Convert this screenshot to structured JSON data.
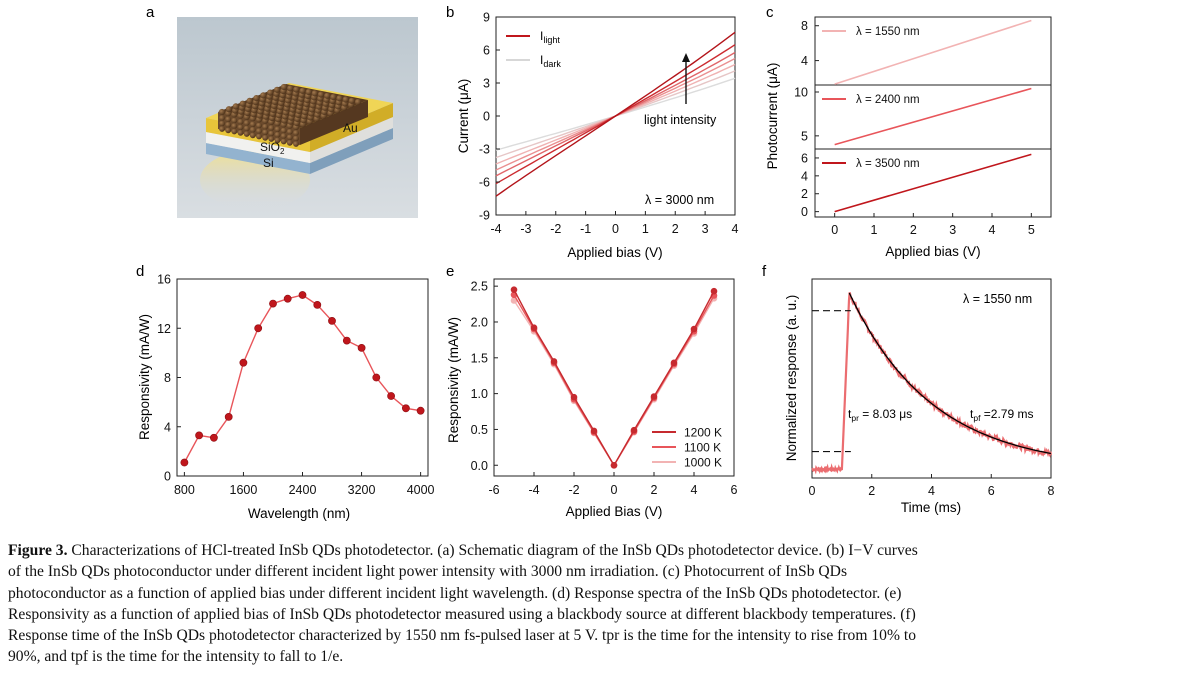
{
  "colors": {
    "dark_red": "#c0161c",
    "mid_red": "#e8555a",
    "light_red": "#f2aaa9",
    "pale": "#d7d7d7",
    "axis": "#222222",
    "fit": "#000000",
    "gold": "#e8c53a",
    "qd_brown": "#6b4a2c"
  },
  "panels": {
    "a": {
      "letter": "a",
      "label_au": "Au",
      "label_sio2_main": "SiO",
      "label_sio2_sub": "2",
      "label_si": "Si"
    },
    "b": {
      "letter": "b",
      "legend_light_main": "I",
      "legend_light_sub": "light",
      "legend_dark_main": "I",
      "legend_dark_sub": "dark",
      "annotation": "light intensity",
      "wavelength": "λ = 3000 nm"
    },
    "c": {
      "letter": "c"
    },
    "d": {
      "letter": "d"
    },
    "e": {
      "letter": "e"
    },
    "f": {
      "letter": "f",
      "wavelength": "λ = 1550 nm",
      "tpr_main": "t",
      "tpr_sub": "pr",
      "tpr_value": " = 8.03 μs",
      "tpf_main": "t",
      "tpf_sub": "pf",
      "tpf_value": " =2.79 ms"
    }
  },
  "chart_data": [
    {
      "panel": "b",
      "type": "line",
      "xlabel": "Applied bias (V)",
      "ylabel": "Current (μA)",
      "xlim": [
        -4,
        4
      ],
      "ylim": [
        -9,
        9
      ],
      "xticks": [
        "-4",
        "-3",
        "-2",
        "-1",
        "0",
        "1",
        "2",
        "3",
        "4"
      ],
      "yticks": [
        "-9",
        "-6",
        "-3",
        "0",
        "3",
        "6",
        "9"
      ],
      "series": [
        {
          "name": "I_dark 1",
          "slope": 0.82,
          "color": "#dcdcdc"
        },
        {
          "name": "I_dark 2",
          "slope": 0.98,
          "color": "#e6c6c6"
        },
        {
          "name": "I_light 1",
          "slope": 1.12,
          "color": "#f0b2b2"
        },
        {
          "name": "I_light 2",
          "slope": 1.25,
          "color": "#ea8f90"
        },
        {
          "name": "I_light 3",
          "slope": 1.38,
          "color": "#e06569"
        },
        {
          "name": "I_light 4",
          "slope": 1.55,
          "color": "#cc2b30"
        },
        {
          "name": "I_light 5",
          "slope": 1.82,
          "color": "#b3141a"
        }
      ]
    },
    {
      "panel": "c",
      "type": "line",
      "xlabel": "Applied bias (V)",
      "ylabel": "Photocurrent (μA)",
      "xlim": [
        -0.5,
        5.5
      ],
      "xticks": [
        "0",
        "1",
        "2",
        "3",
        "4",
        "5"
      ],
      "subplots": [
        {
          "legend": "λ = 1550 nm",
          "ylim": [
            1.2,
            9.0
          ],
          "yticks": [
            "4",
            "8"
          ],
          "x": [
            0,
            5
          ],
          "y": [
            1.3,
            8.6
          ],
          "color": "#f2b3b3"
        },
        {
          "legend": "λ = 2400 nm",
          "ylim": [
            3.5,
            10.8
          ],
          "yticks": [
            "5",
            "10"
          ],
          "x": [
            0,
            5
          ],
          "y": [
            4.0,
            10.4
          ],
          "color": "#e8555a"
        },
        {
          "legend": "λ = 3500 nm",
          "ylim": [
            -0.6,
            7.0
          ],
          "yticks": [
            "0",
            "2",
            "4",
            "6"
          ],
          "x": [
            0,
            5
          ],
          "y": [
            0.0,
            6.4
          ],
          "color": "#c0161c"
        }
      ]
    },
    {
      "panel": "d",
      "type": "line",
      "xlabel": "Wavelength (nm)",
      "ylabel": "Responsivity (mA/W)",
      "xlim": [
        700,
        4100
      ],
      "ylim": [
        0,
        16
      ],
      "xticks": [
        "800",
        "1600",
        "2400",
        "3200",
        "4000"
      ],
      "yticks": [
        "0",
        "4",
        "8",
        "12",
        "16"
      ],
      "x": [
        800,
        1000,
        1200,
        1400,
        1600,
        1800,
        2000,
        2200,
        2400,
        2600,
        2800,
        3000,
        3200,
        3400,
        3600,
        3800,
        4000
      ],
      "y": [
        1.1,
        3.3,
        3.1,
        4.8,
        9.2,
        12.0,
        14.0,
        14.4,
        14.7,
        13.9,
        12.6,
        11.0,
        10.4,
        8.0,
        6.5,
        5.5,
        5.3
      ]
    },
    {
      "panel": "e",
      "type": "line",
      "xlabel": "Applied Bias (V)",
      "ylabel": "Responsivity (mA/W)",
      "xlim": [
        -6,
        6
      ],
      "ylim": [
        -0.15,
        2.6
      ],
      "xticks": [
        "-6",
        "-4",
        "-2",
        "0",
        "2",
        "4",
        "6"
      ],
      "yticks": [
        "0.0",
        "0.5",
        "1.0",
        "1.5",
        "2.0",
        "2.5"
      ],
      "x": [
        -5,
        -4,
        -3,
        -2,
        -1,
        0,
        1,
        2,
        3,
        4,
        5
      ],
      "series": [
        {
          "name": "1200 K",
          "values": [
            2.45,
            1.92,
            1.45,
            0.95,
            0.48,
            0.0,
            0.49,
            0.96,
            1.43,
            1.9,
            2.43
          ],
          "color": "#c62a2f"
        },
        {
          "name": "1100 K",
          "values": [
            2.38,
            1.9,
            1.43,
            0.92,
            0.46,
            0.0,
            0.47,
            0.94,
            1.41,
            1.87,
            2.37
          ],
          "color": "#e8555a"
        },
        {
          "name": "1000 K",
          "values": [
            2.3,
            1.87,
            1.41,
            0.9,
            0.45,
            0.0,
            0.46,
            0.92,
            1.39,
            1.84,
            2.33
          ],
          "color": "#f2b3b3"
        }
      ]
    },
    {
      "panel": "f",
      "type": "line",
      "xlabel": "Time (ms)",
      "ylabel": "Normalized response (a. u.)",
      "xlim": [
        0,
        8
      ],
      "ylim": [
        -0.05,
        1.08
      ],
      "xticks": [
        "0",
        "2",
        "4",
        "6",
        "8"
      ],
      "rise_start": 1.0,
      "peak_time": 1.25,
      "baseline": 0.0,
      "peak": 1.0,
      "decay_tau_ms": 2.79,
      "dashed_levels": [
        0.9,
        0.1
      ]
    }
  ],
  "caption": {
    "figure_label": "Figure 3.",
    "lines": [
      " Characterizations of HCl-treated InSb QDs photodetector. (a) Schematic diagram of the InSb QDs photodetector device. (b) I−V curves",
      "of the InSb QDs photoconductor under different incident light power intensity with 3000 nm irradiation. (c) Photocurrent of InSb QDs",
      "photoconductor as a function of applied bias under different incident light wavelength. (d) Response spectra of the InSb QDs photodetector. (e)",
      "Responsivity as a function of applied bias of InSb QDs photodetector measured using a blackbody source at different blackbody temperatures. (f)",
      "Response time of the InSb QDs photodetector characterized by 1550 nm fs-pulsed laser at 5 V. tpr is the time for the intensity to rise from 10% to",
      "90%, and tpf is the time for the intensity to fall to 1/e."
    ]
  }
}
